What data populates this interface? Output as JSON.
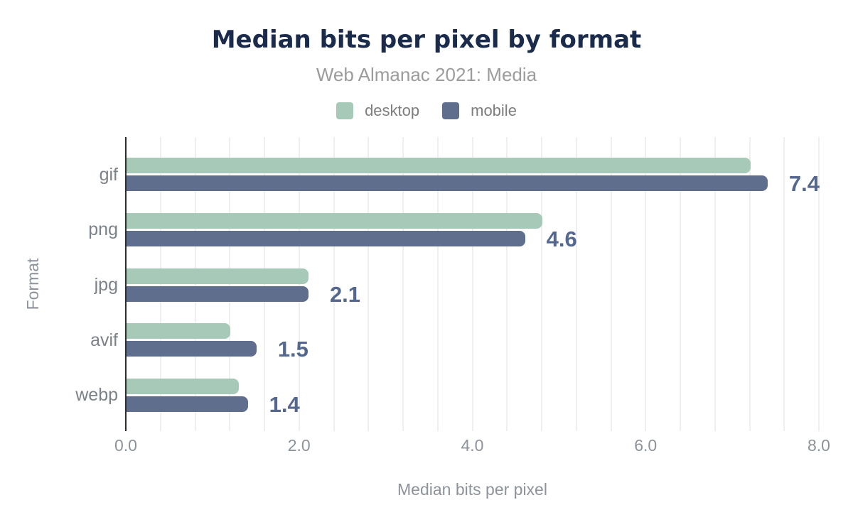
{
  "header": {
    "title": "Median bits per pixel by format",
    "subtitle": "Web Almanac 2021: Media"
  },
  "chart_data": {
    "type": "bar",
    "orientation": "horizontal",
    "title": "Median bits per pixel by format",
    "subtitle": "Web Almanac 2021: Media",
    "categories": [
      "gif",
      "png",
      "jpg",
      "avif",
      "webp"
    ],
    "series": [
      {
        "name": "desktop",
        "color": "#a6c9b8",
        "values": [
          7.2,
          4.8,
          2.1,
          1.2,
          1.3
        ]
      },
      {
        "name": "mobile",
        "color": "#5f6e8c",
        "values": [
          7.4,
          4.6,
          2.1,
          1.5,
          1.4
        ]
      }
    ],
    "bar_labels": [
      "7.4",
      "4.6",
      "2.1",
      "1.5",
      "1.4"
    ],
    "labeled_series": "mobile",
    "xlabel": "Median bits per pixel",
    "ylabel": "Format",
    "xlim": [
      0,
      8
    ],
    "xticks": [
      0,
      2,
      4,
      6,
      8
    ],
    "xtick_labels": [
      "0.0",
      "2.0",
      "4.0",
      "6.0",
      "8.0"
    ],
    "minor_grid_step": 0.4,
    "grid": true,
    "legend_position": "top",
    "colors": {
      "title": "#1b2b4b",
      "subtitle": "#9c9c9c",
      "legend_text": "#7d7d7d",
      "category_label": "#7c8289",
      "tick_label": "#8d939a",
      "axis_title": "#8d939a",
      "value_label": "#54678f",
      "axis_line": "#2e2e2e",
      "gridline": "#efefef",
      "background": "#ffffff"
    }
  }
}
